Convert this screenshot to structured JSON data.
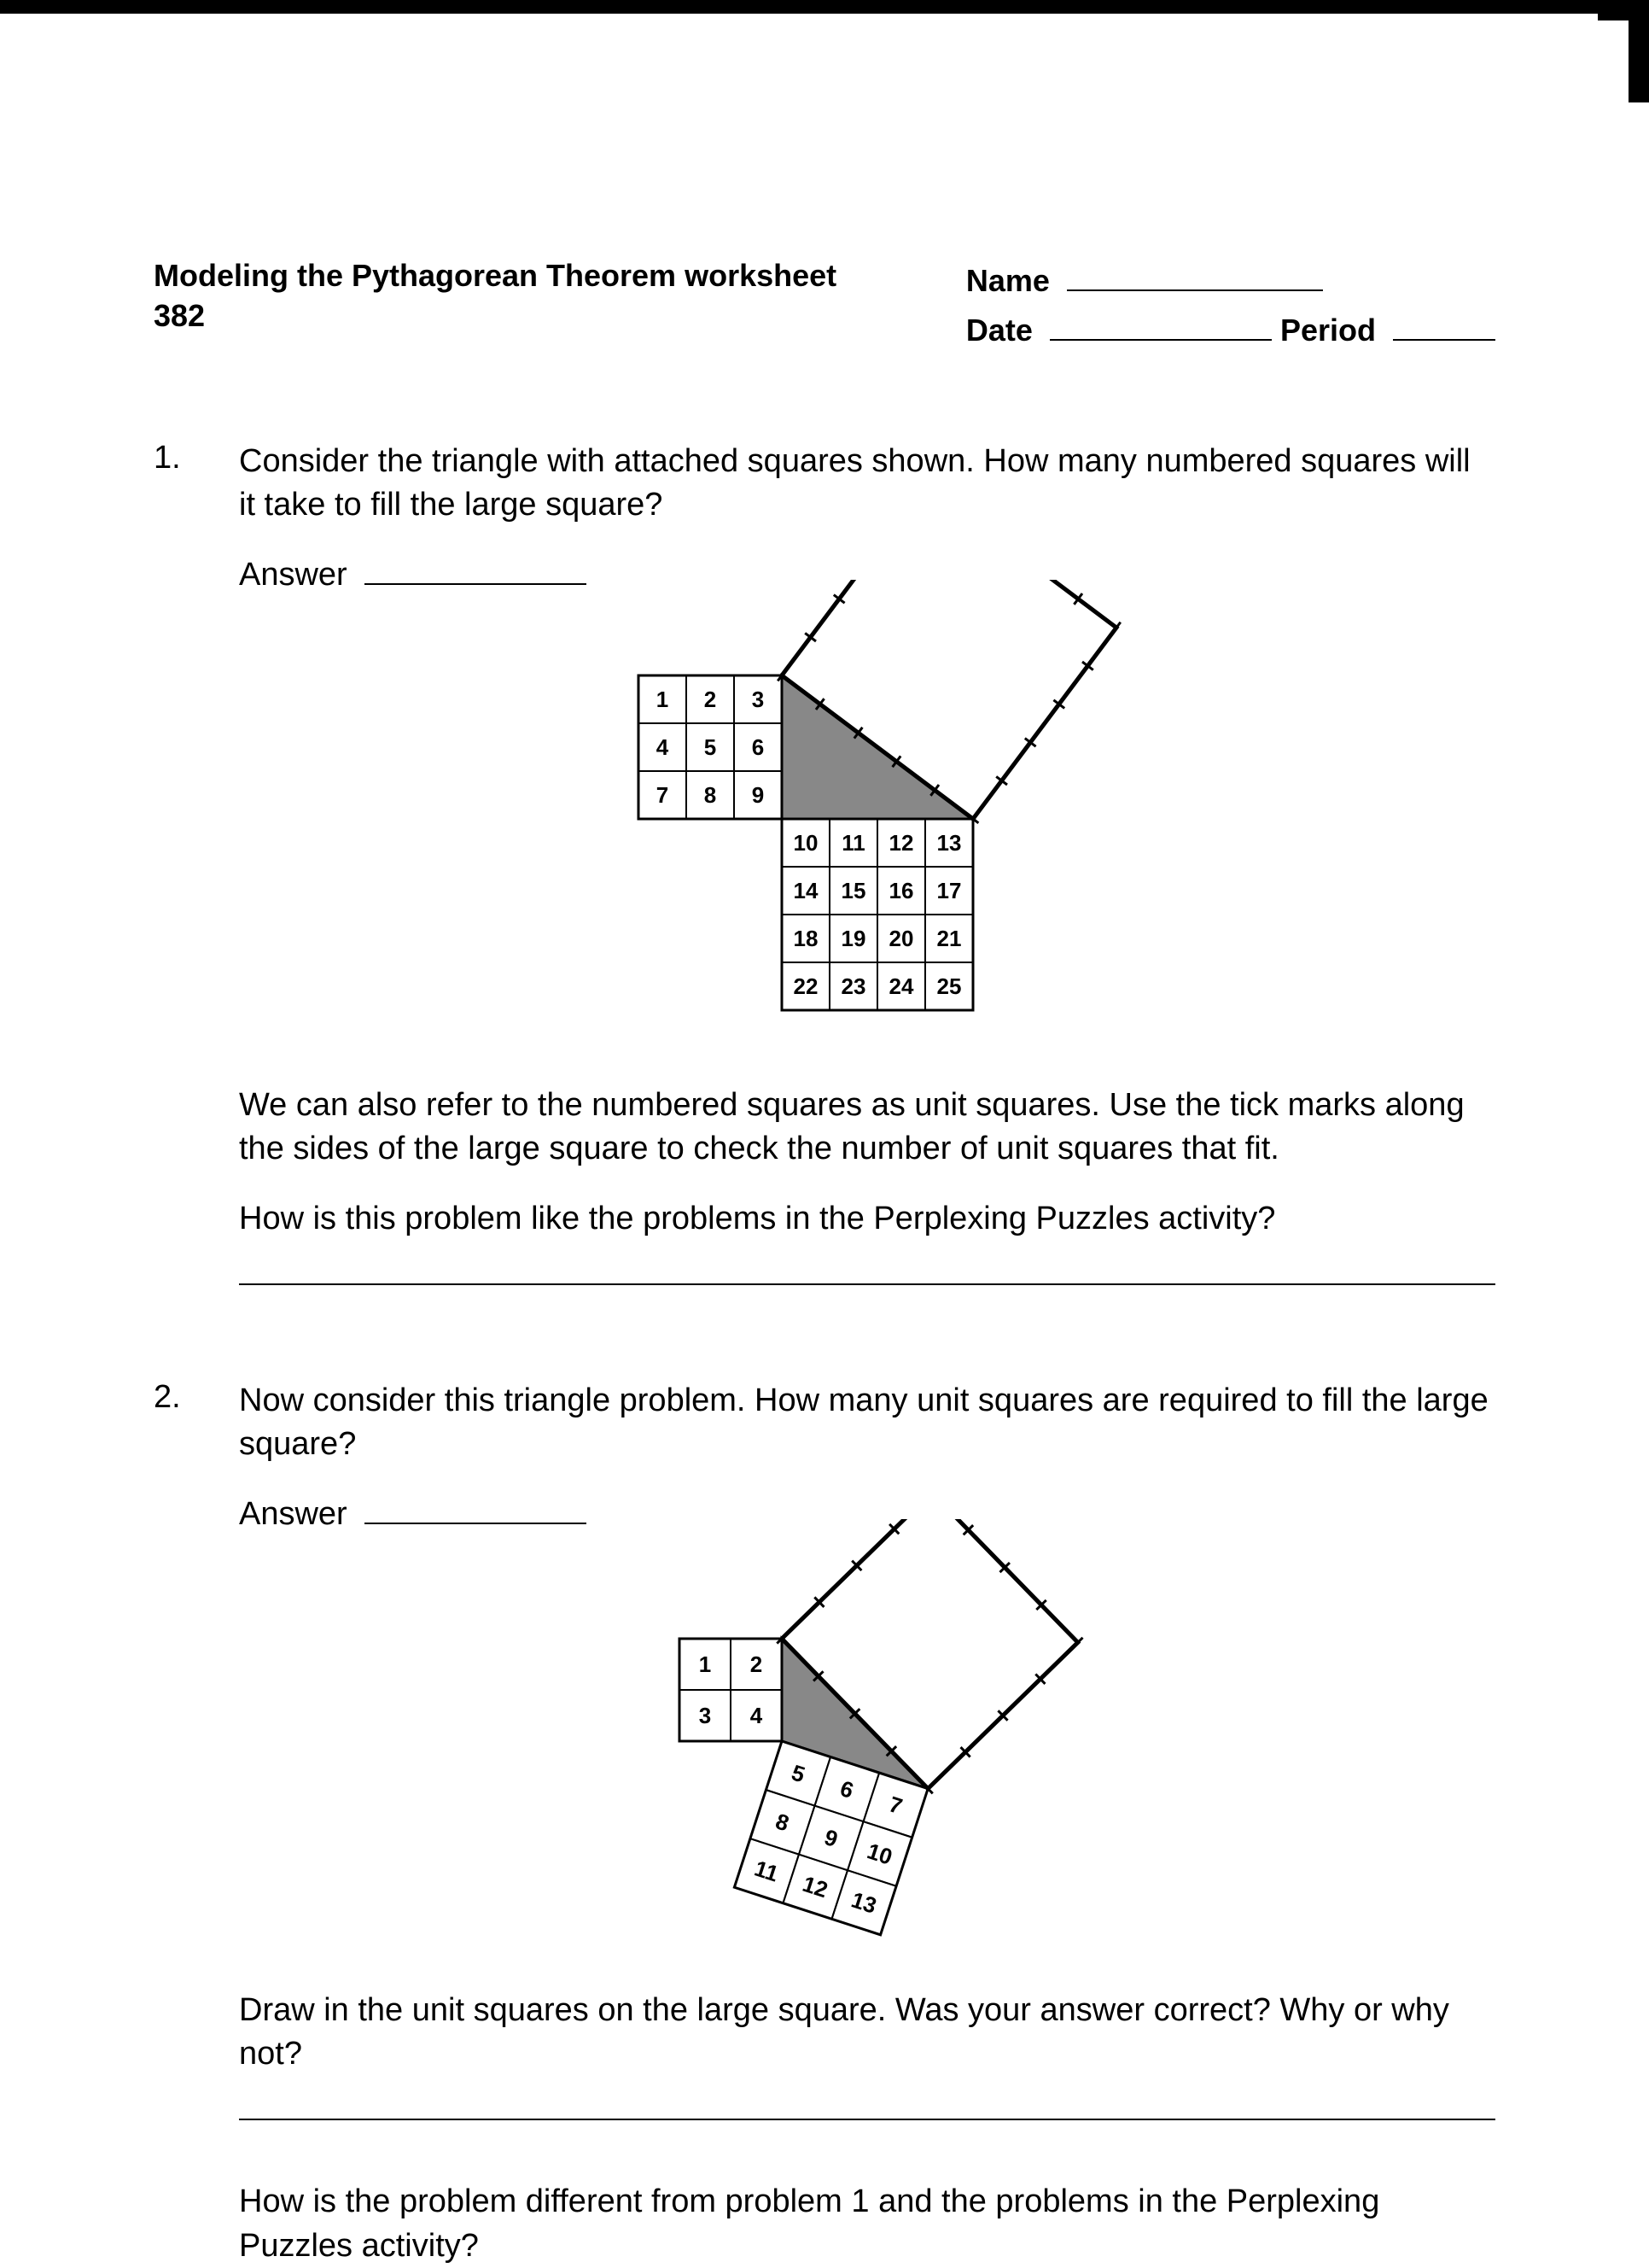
{
  "header": {
    "title_line1": "Modeling the Pythagorean Theorem worksheet",
    "title_line2": "382",
    "name_label": "Name",
    "date_label": "Date",
    "period_label": "Period"
  },
  "problems": [
    {
      "num": "1.",
      "q_text": "Consider the triangle with attached squares shown. How many numbered squares will it take to fill the large square?",
      "answer_label": "Answer",
      "p1": "We can also refer to the numbered squares as unit squares. Use the tick marks along the sides of the large square to check the number of unit squares that fit.",
      "p2": "How is this problem like the problems in the Perplexing Puzzles activity?"
    },
    {
      "num": "2.",
      "q_text": "Now consider this triangle problem. How many unit squares are required to fill the large square?",
      "answer_label": "Answer",
      "p1": "Draw in the unit squares on the large square. Was your answer correct? Why or why not?",
      "p2": "How is the problem different from problem 1 and the problems in the Perplexing Puzzles activity?"
    }
  ],
  "fig1": {
    "cell": 56,
    "stroke": "#000000",
    "fill_bg": "#ffffff",
    "fill_tri": "#888888",
    "gridA": {
      "rows": 3,
      "cols": 3,
      "start": 1
    },
    "gridB": {
      "rows": 4,
      "cols": 4,
      "start": 10
    },
    "hyp_ticks": 5,
    "font_size": 26
  },
  "fig2": {
    "cell": 60,
    "stroke": "#000000",
    "fill_bg": "#ffffff",
    "fill_tri": "#888888",
    "gridA": {
      "rows": 2,
      "cols": 2,
      "start": 1
    },
    "gridB": {
      "rows": 3,
      "cols": 3,
      "start": 5
    },
    "b_angle_deg": 18,
    "hyp_len_units": 3.606,
    "font_size": 26
  }
}
